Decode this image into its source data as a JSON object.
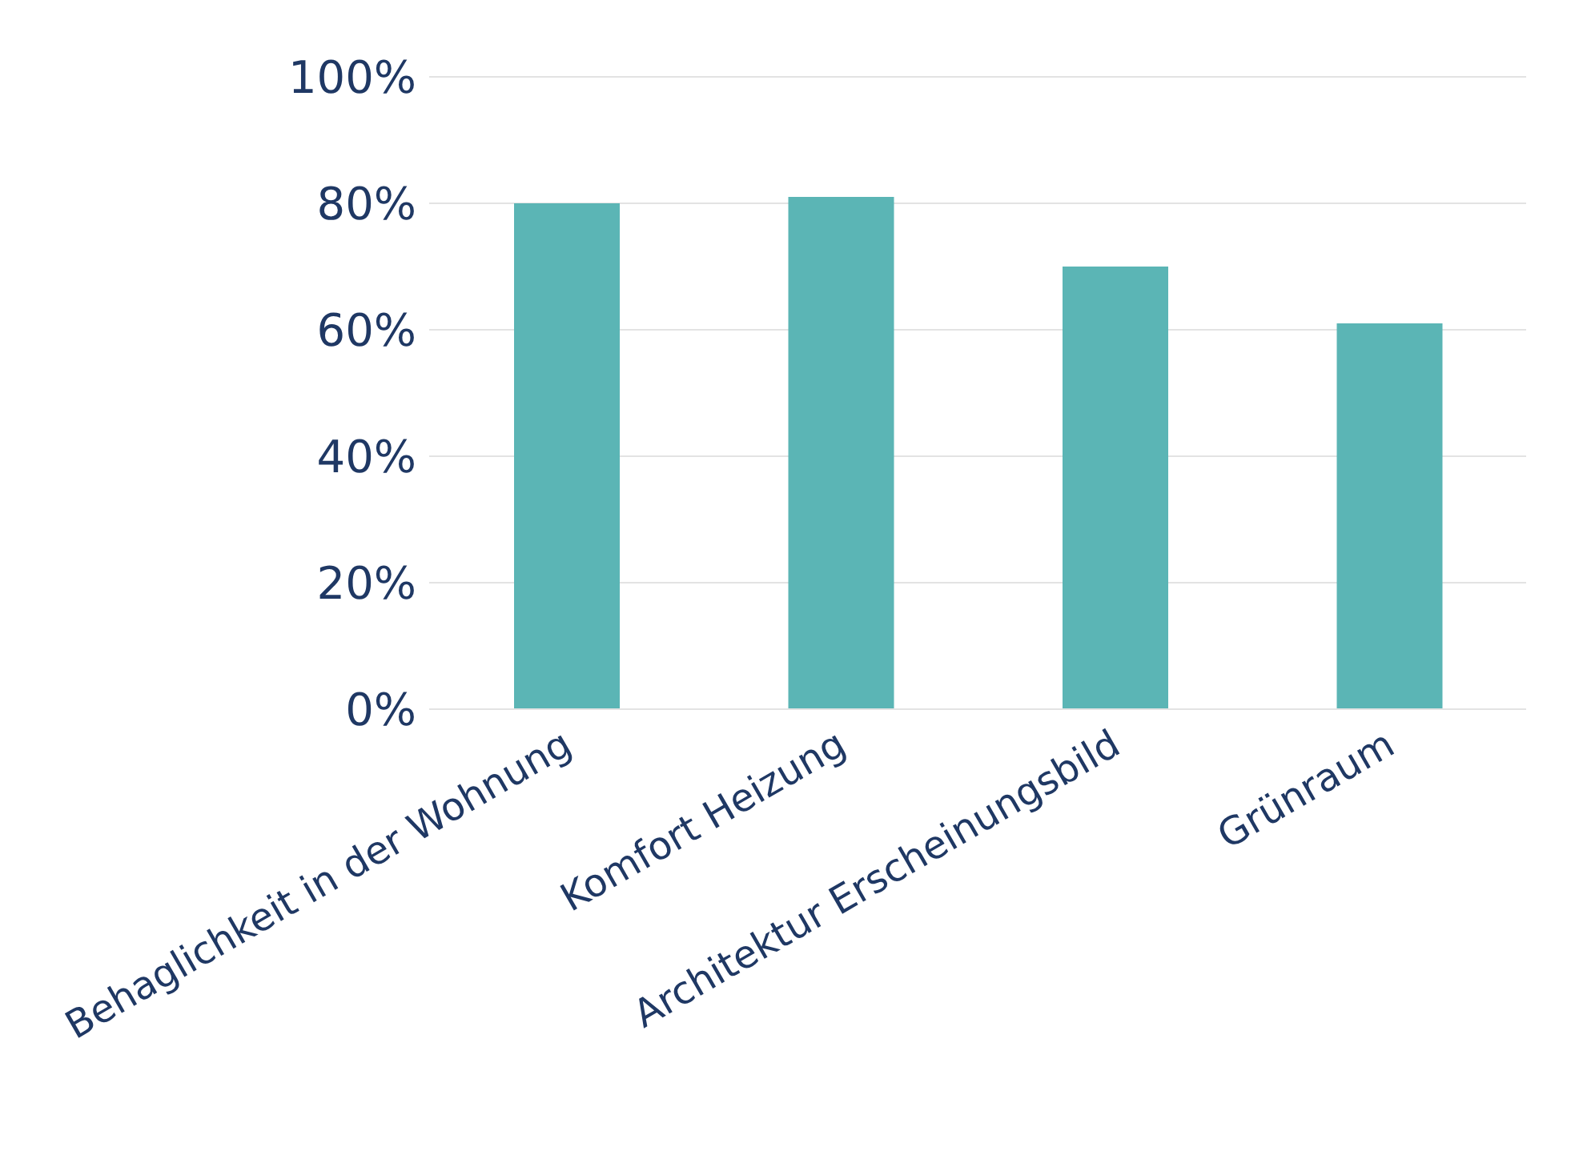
{
  "chart_data": {
    "type": "bar",
    "categories": [
      "Behaglichkeit in der Wohnung",
      "Komfort Heizung",
      "Architektur Erscheinungsbild",
      "Grünraum"
    ],
    "values": [
      80,
      81,
      70,
      61
    ],
    "color": "#5bb5b5",
    "ylim": [
      0,
      100
    ],
    "yticks": [
      {
        "value": 0,
        "label": "0%"
      },
      {
        "value": 20,
        "label": "20%"
      },
      {
        "value": 40,
        "label": "40%"
      },
      {
        "value": 60,
        "label": "60%"
      },
      {
        "value": 80,
        "label": "80%"
      },
      {
        "value": 100,
        "label": "100%"
      }
    ],
    "grid": "y"
  }
}
